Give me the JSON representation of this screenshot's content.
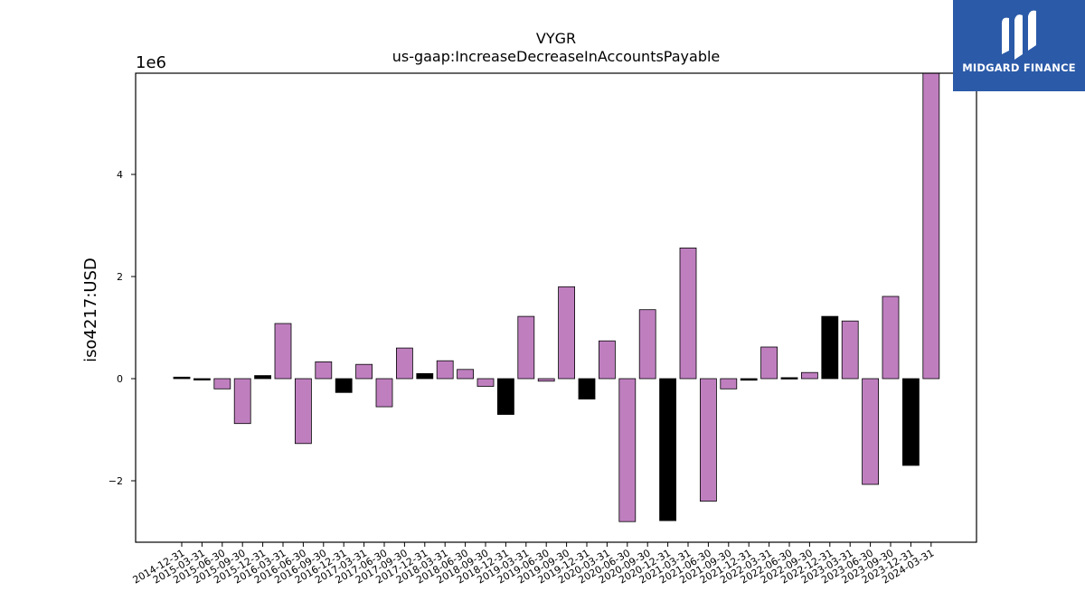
{
  "logo": {
    "text": "MIDGARD FINANCE",
    "icon": "midgard-logo-icon",
    "bg_color": "#2b5aa8"
  },
  "chart_data": {
    "type": "bar",
    "title": "VYGR",
    "subtitle": "us-gaap:IncreaseDecreaseInAccountsPayable",
    "ylabel": "iso4217:USD",
    "xlabel": "",
    "y_offset_label": "1e6",
    "y_ticks": [
      -2,
      0,
      2,
      4
    ],
    "y_tick_labels": [
      "−2",
      "0",
      "2",
      "4"
    ],
    "ylim": [
      -3.2,
      6.0
    ],
    "grid": false,
    "colors": {
      "positive": "#bf7fbf",
      "negative": "#000000"
    },
    "categories": [
      "2014-12-31",
      "2015-03-31",
      "2015-06-30",
      "2015-09-30",
      "2015-12-31",
      "2016-03-31",
      "2016-06-30",
      "2016-09-30",
      "2016-12-31",
      "2017-03-31",
      "2017-06-30",
      "2017-09-30",
      "2017-12-31",
      "2018-03-31",
      "2018-06-30",
      "2018-09-30",
      "2018-12-31",
      "2019-03-31",
      "2019-06-30",
      "2019-09-30",
      "2019-12-31",
      "2020-03-31",
      "2020-06-30",
      "2020-09-30",
      "2020-12-31",
      "2021-03-31",
      "2021-06-30",
      "2021-09-30",
      "2021-12-31",
      "2022-03-31",
      "2022-06-30",
      "2022-09-30",
      "2022-12-31",
      "2023-03-31",
      "2023-06-30",
      "2023-09-30",
      "2023-12-31",
      "2024-03-31"
    ],
    "values": [
      0.03,
      0.0,
      -0.2,
      -0.88,
      0.06,
      1.08,
      -1.27,
      0.33,
      -0.27,
      0.28,
      -0.55,
      0.6,
      0.1,
      0.35,
      0.18,
      -0.15,
      -0.7,
      1.22,
      -0.05,
      1.8,
      -0.4,
      0.74,
      -2.8,
      1.35,
      -2.78,
      2.56,
      -2.4,
      -0.2,
      -0.03,
      0.62,
      0.02,
      0.12,
      1.22,
      1.13,
      -2.07,
      1.61,
      -1.7,
      6.0
    ],
    "series_color_flags": [
      "neg",
      "neg",
      "pos",
      "pos",
      "neg",
      "pos",
      "pos",
      "pos",
      "neg",
      "pos",
      "pos",
      "pos",
      "neg",
      "pos",
      "pos",
      "pos",
      "neg",
      "pos",
      "pos",
      "pos",
      "neg",
      "pos",
      "pos",
      "pos",
      "neg",
      "pos",
      "pos",
      "pos",
      "neg",
      "pos",
      "neg",
      "pos",
      "neg",
      "pos",
      "pos",
      "pos",
      "neg",
      "pos"
    ]
  }
}
